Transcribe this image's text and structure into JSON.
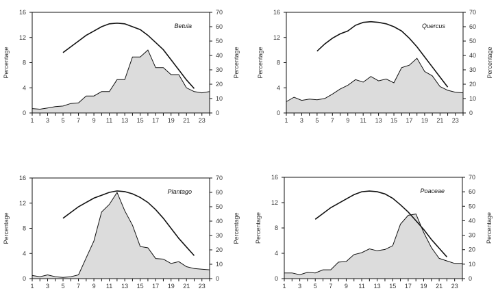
{
  "chart_data": [
    {
      "type": "area",
      "title": "Betula",
      "ylabel": "Percentage",
      "y2label": "Percentage",
      "xlim": [
        1,
        24
      ],
      "ylim": [
        0,
        16
      ],
      "y2lim": [
        0,
        70
      ],
      "xticks": [
        "1",
        "3",
        "5",
        "7",
        "9",
        "11",
        "13",
        "15",
        "17",
        "19",
        "21",
        "23"
      ],
      "yticks": [
        "0",
        "4",
        "8",
        "12",
        "16"
      ],
      "y2ticks": [
        "0",
        "10",
        "20",
        "30",
        "40",
        "50",
        "60",
        "70"
      ],
      "series": [
        {
          "name": "area",
          "axis": "left",
          "x": [
            1,
            2,
            3,
            4,
            5,
            6,
            7,
            8,
            9,
            10,
            11,
            12,
            13,
            14,
            15,
            16,
            17,
            18,
            19,
            20,
            21,
            22,
            23,
            24
          ],
          "values": [
            0.7,
            0.6,
            0.8,
            1.0,
            1.1,
            1.5,
            1.6,
            2.7,
            2.7,
            3.4,
            3.4,
            5.3,
            5.3,
            8.9,
            8.9,
            10.0,
            7.2,
            7.2,
            6.1,
            6.1,
            4.0,
            3.4,
            3.2,
            3.4
          ]
        },
        {
          "name": "curve",
          "axis": "right",
          "x": [
            5,
            6,
            7,
            8,
            9,
            10,
            11,
            12,
            13,
            14,
            15,
            16,
            17,
            18,
            19,
            20,
            21,
            22
          ],
          "values": [
            42,
            46,
            50,
            54,
            57,
            60,
            62,
            62.5,
            62,
            60,
            58,
            54,
            49,
            44,
            37,
            30,
            23,
            17
          ]
        }
      ]
    },
    {
      "type": "area",
      "title": "Quercus",
      "ylabel": "Percentage",
      "y2label": "Percentage",
      "xlim": [
        1,
        24
      ],
      "ylim": [
        0,
        16
      ],
      "y2lim": [
        0,
        70
      ],
      "xticks": [
        "1",
        "3",
        "5",
        "7",
        "9",
        "11",
        "13",
        "15",
        "17",
        "19",
        "21",
        "23"
      ],
      "yticks": [
        "0",
        "4",
        "8",
        "12",
        "16"
      ],
      "y2ticks": [
        "0",
        "10",
        "20",
        "30",
        "40",
        "50",
        "60",
        "70"
      ],
      "series": [
        {
          "name": "area",
          "axis": "left",
          "x": [
            1,
            2,
            3,
            4,
            5,
            6,
            7,
            8,
            9,
            10,
            11,
            12,
            13,
            14,
            15,
            16,
            17,
            18,
            19,
            20,
            21,
            22,
            23,
            24
          ],
          "values": [
            1.8,
            2.5,
            2.0,
            2.2,
            2.1,
            2.3,
            3.0,
            3.8,
            4.4,
            5.3,
            4.9,
            5.8,
            5.1,
            5.4,
            4.8,
            7.2,
            7.6,
            8.7,
            6.6,
            5.9,
            4.2,
            3.6,
            3.3,
            3.2
          ]
        },
        {
          "name": "curve",
          "axis": "right",
          "x": [
            5,
            6,
            7,
            8,
            9,
            10,
            11,
            12,
            13,
            14,
            15,
            16,
            17,
            18,
            19,
            20,
            21,
            22
          ],
          "values": [
            43,
            48,
            52,
            55,
            57,
            61,
            63,
            63.5,
            63,
            62,
            60,
            57,
            52,
            46,
            39,
            32,
            25,
            18
          ]
        }
      ]
    },
    {
      "type": "area",
      "title": "Plantago",
      "ylabel": "Percentage",
      "y2label": "Percentage",
      "xlim": [
        1,
        24
      ],
      "ylim": [
        0,
        16
      ],
      "y2lim": [
        0,
        70
      ],
      "xticks": [
        "1",
        "3",
        "5",
        "7",
        "9",
        "11",
        "13",
        "15",
        "17",
        "19",
        "21",
        "23"
      ],
      "yticks": [
        "0",
        "4",
        "8",
        "12",
        "16"
      ],
      "y2ticks": [
        "0",
        "10",
        "20",
        "30",
        "40",
        "50",
        "60",
        "70"
      ],
      "series": [
        {
          "name": "area",
          "axis": "left",
          "x": [
            1,
            2,
            3,
            4,
            5,
            6,
            7,
            8,
            9,
            10,
            11,
            12,
            13,
            14,
            15,
            16,
            17,
            18,
            19,
            20,
            21,
            22,
            23,
            24
          ],
          "values": [
            0.5,
            0.3,
            0.6,
            0.3,
            0.2,
            0.3,
            0.6,
            3.3,
            6.0,
            10.6,
            11.8,
            13.7,
            10.8,
            8.5,
            5.1,
            4.9,
            3.2,
            3.1,
            2.4,
            2.7,
            1.9,
            1.6,
            1.5,
            1.4
          ]
        },
        {
          "name": "curve",
          "axis": "right",
          "x": [
            5,
            6,
            7,
            8,
            9,
            10,
            11,
            12,
            13,
            14,
            15,
            16,
            17,
            18,
            19,
            20,
            21,
            22
          ],
          "values": [
            42,
            46,
            50,
            53,
            56,
            58,
            60,
            61,
            60.5,
            59,
            56.5,
            53,
            48,
            42,
            35,
            28,
            22,
            16
          ]
        }
      ]
    },
    {
      "type": "area",
      "title": "Poaceae",
      "ylabel": "Percentage",
      "y2label": "Percentage",
      "xlim": [
        1,
        24
      ],
      "ylim": [
        0,
        16
      ],
      "y2lim": [
        0,
        70
      ],
      "xticks": [
        "1",
        "3",
        "5",
        "7",
        "9",
        "11",
        "13",
        "15",
        "17",
        "19",
        "21",
        "23"
      ],
      "yticks": [
        "0",
        "4",
        "8",
        "12",
        "16"
      ],
      "y2ticks": [
        "0",
        "10",
        "20",
        "30",
        "40",
        "50",
        "60",
        "70"
      ],
      "series": [
        {
          "name": "area",
          "axis": "left",
          "x": [
            1,
            2,
            3,
            4,
            5,
            6,
            7,
            8,
            9,
            10,
            11,
            12,
            13,
            14,
            15,
            16,
            17,
            18,
            19,
            20,
            21,
            22,
            23,
            24
          ],
          "values": [
            0.9,
            0.9,
            0.6,
            1.0,
            0.9,
            1.4,
            1.4,
            2.6,
            2.7,
            3.8,
            4.1,
            4.7,
            4.4,
            4.6,
            5.2,
            8.6,
            10.0,
            10.2,
            7.3,
            4.9,
            3.2,
            2.8,
            2.4,
            2.4
          ]
        },
        {
          "name": "curve",
          "axis": "right",
          "x": [
            5,
            6,
            7,
            8,
            9,
            10,
            11,
            12,
            13,
            14,
            15,
            16,
            17,
            18,
            19,
            20,
            21,
            22
          ],
          "values": [
            41,
            45,
            49,
            52,
            55,
            58,
            60,
            60.5,
            60,
            58.5,
            55.5,
            51,
            46,
            40,
            34,
            27,
            21,
            15
          ]
        }
      ]
    }
  ]
}
